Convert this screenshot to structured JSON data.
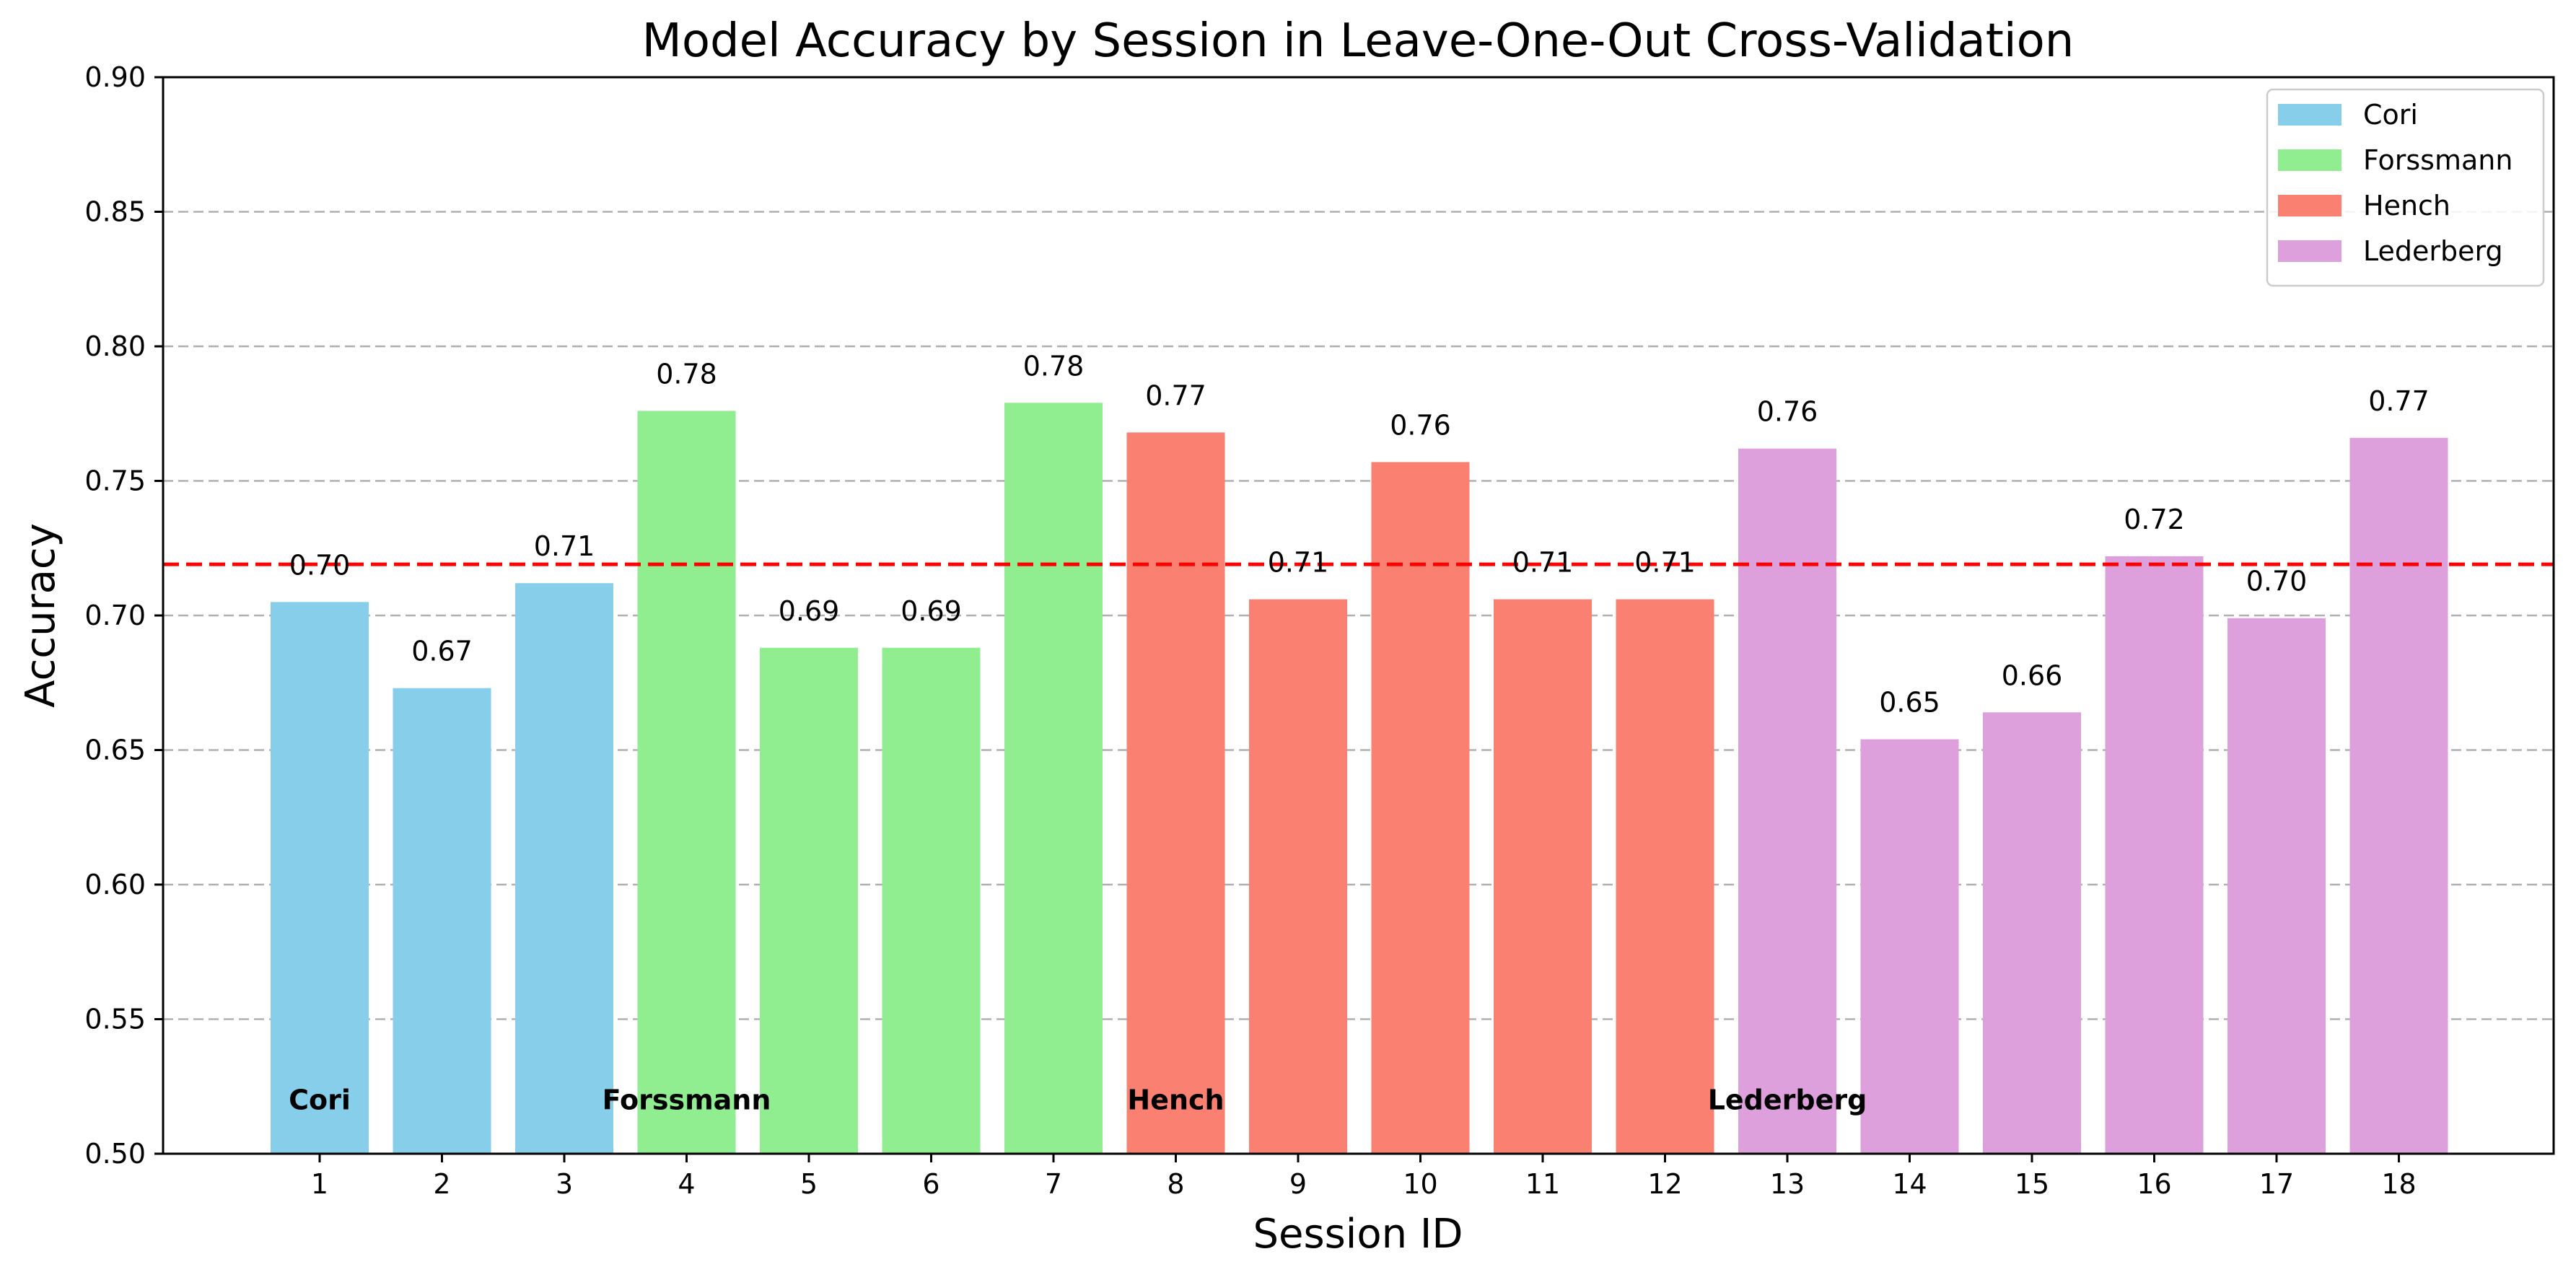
{
  "chart_data": {
    "type": "bar",
    "title": "Model Accuracy by Session in Leave-One-Out Cross-Validation",
    "xlabel": "Session ID",
    "ylabel": "Accuracy",
    "ylim": [
      0.5,
      0.9
    ],
    "yticks": [
      "0.50",
      "0.55",
      "0.60",
      "0.65",
      "0.70",
      "0.75",
      "0.80",
      "0.85",
      "0.90"
    ],
    "grid": "horizontal dashed",
    "legend_position": "top-right",
    "mean_line": {
      "value": 0.719,
      "color": "#ff0000",
      "style": "dashed"
    },
    "groups": [
      {
        "name": "Cori",
        "color": "#87ceeb"
      },
      {
        "name": "Forssmann",
        "color": "#90ee90"
      },
      {
        "name": "Hench",
        "color": "#fa8072"
      },
      {
        "name": "Lederberg",
        "color": "#dda0dd"
      }
    ],
    "bars": [
      {
        "category": "1",
        "value": 0.705,
        "label": "0.70",
        "group": "Cori"
      },
      {
        "category": "2",
        "value": 0.673,
        "label": "0.67",
        "group": "Cori"
      },
      {
        "category": "3",
        "value": 0.712,
        "label": "0.71",
        "group": "Cori"
      },
      {
        "category": "4",
        "value": 0.776,
        "label": "0.78",
        "group": "Forssmann"
      },
      {
        "category": "5",
        "value": 0.688,
        "label": "0.69",
        "group": "Forssmann"
      },
      {
        "category": "6",
        "value": 0.688,
        "label": "0.69",
        "group": "Forssmann"
      },
      {
        "category": "7",
        "value": 0.779,
        "label": "0.78",
        "group": "Forssmann"
      },
      {
        "category": "8",
        "value": 0.768,
        "label": "0.77",
        "group": "Hench"
      },
      {
        "category": "9",
        "value": 0.706,
        "label": "0.71",
        "group": "Hench"
      },
      {
        "category": "10",
        "value": 0.757,
        "label": "0.76",
        "group": "Hench"
      },
      {
        "category": "11",
        "value": 0.706,
        "label": "0.71",
        "group": "Hench"
      },
      {
        "category": "12",
        "value": 0.706,
        "label": "0.71",
        "group": "Hench"
      },
      {
        "category": "13",
        "value": 0.762,
        "label": "0.76",
        "group": "Lederberg"
      },
      {
        "category": "14",
        "value": 0.654,
        "label": "0.65",
        "group": "Lederberg"
      },
      {
        "category": "15",
        "value": 0.664,
        "label": "0.66",
        "group": "Lederberg"
      },
      {
        "category": "16",
        "value": 0.722,
        "label": "0.72",
        "group": "Lederberg"
      },
      {
        "category": "17",
        "value": 0.699,
        "label": "0.70",
        "group": "Lederberg"
      },
      {
        "category": "18",
        "value": 0.766,
        "label": "0.77",
        "group": "Lederberg"
      }
    ],
    "group_annotations": [
      {
        "text": "Cori",
        "x_category": "1"
      },
      {
        "text": "Forssmann",
        "x_category": "4"
      },
      {
        "text": "Hench",
        "x_category": "8"
      },
      {
        "text": "Lederberg",
        "x_category": "13"
      }
    ]
  }
}
